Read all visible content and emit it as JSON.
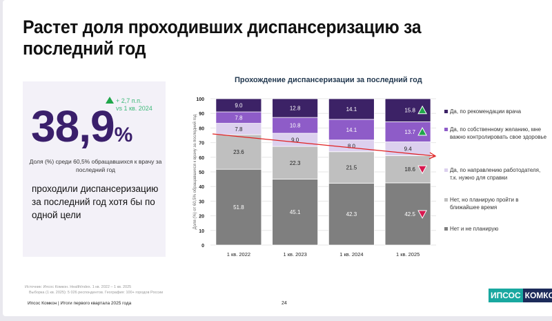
{
  "title": "Растет доля проходивших диспансеризацию за последний год",
  "kpi": {
    "value": "38,9",
    "unit": "%",
    "delta_line1": "+ 2,7 п.п.",
    "delta_line2": "vs 1 кв. 2024",
    "delta_icon": "triangle-up-icon",
    "subtitle": "Доля (%) среди 60,5% обращавшихся к врачу за последний год",
    "description": "проходили диспансеризацию за последний год хотя бы по одной цели"
  },
  "chart_data": {
    "type": "bar",
    "stacked": true,
    "title": "Прохождение диспансеризации за последний год",
    "ylabel": "Доля (%) от 60,5% обращавшихся к врачу за последний год",
    "ylim": [
      0,
      100
    ],
    "yticks": [
      0,
      10,
      20,
      30,
      40,
      50,
      60,
      70,
      80,
      90,
      100
    ],
    "grid": true,
    "legend": "right",
    "categories": [
      "1 кв. 2022",
      "1 кв. 2023",
      "1 кв. 2024",
      "1 кв. 2025"
    ],
    "series": [
      {
        "name": "Нет и не планирую",
        "color": "#7f7f7f",
        "label_color": "#ffffff",
        "values": [
          51.8,
          45.1,
          42.3,
          42.5
        ],
        "markers": [
          null,
          null,
          null,
          "down"
        ]
      },
      {
        "name": "Нет, но планирую пройти в ближайшее время",
        "color": "#bfbfbf",
        "label_color": "#222222",
        "values": [
          23.6,
          22.3,
          21.5,
          18.6
        ],
        "markers": [
          null,
          null,
          null,
          "down"
        ]
      },
      {
        "name": "Да, по направлению работодателя, т.к. нужно для справки",
        "color": "#dcd0ee",
        "label_color": "#222222",
        "values": [
          7.8,
          9.0,
          8.0,
          9.4
        ],
        "markers": [
          null,
          null,
          null,
          null
        ]
      },
      {
        "name": "Да, по собственному желанию, мне важно контролировать свое здоровье",
        "color": "#8e5cc8",
        "label_color": "#ffffff",
        "values": [
          7.8,
          10.8,
          14.1,
          13.7
        ],
        "markers": [
          null,
          null,
          null,
          "up"
        ]
      },
      {
        "name": "Да, по рекомендации врача",
        "color": "#3c2266",
        "label_color": "#ffffff",
        "values": [
          9.0,
          12.8,
          14.1,
          15.8
        ],
        "markers": [
          null,
          null,
          null,
          "up"
        ]
      }
    ],
    "marker_colors": {
      "up": "#1fa64a",
      "down": "#d8174f"
    },
    "trend_arrow_color": "#e02020"
  },
  "footer": {
    "source_line1": "Источник: Ипсос Комкон. HealthIndex. 1 кв. 2022 – 1 кв. 2025",
    "source_line2": "Выборка (1 кв. 2025): 5 026 респондентов. География: 100+ городов России",
    "caption": "Ипсос Комкон | Итоги первого квартала 2025 года",
    "page": "24",
    "logo_part1": "ИПСОС",
    "logo_part2": "КОМКОН"
  }
}
